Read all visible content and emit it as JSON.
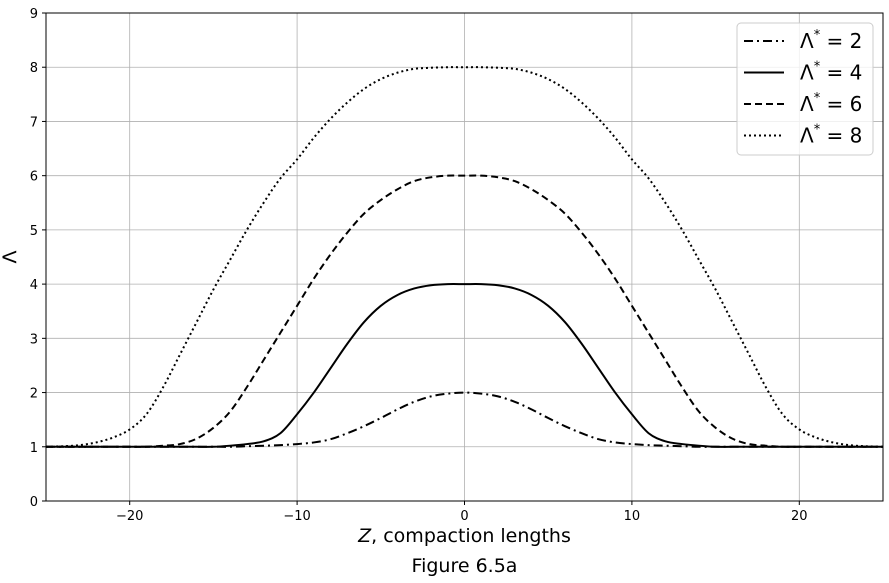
{
  "chart_data": {
    "type": "line",
    "title": "",
    "xlabel_var": "Z",
    "xlabel_rest": ", compaction lengths",
    "ylabel": "Λ",
    "caption": "Figure 6.5a",
    "xlim": [
      -25,
      25
    ],
    "ylim": [
      0,
      9
    ],
    "xticks": [
      -20,
      -10,
      0,
      10,
      20
    ],
    "xtick_labels": [
      "−20",
      "−10",
      "0",
      "10",
      "20"
    ],
    "yticks": [
      0,
      1,
      2,
      3,
      4,
      5,
      6,
      7,
      8,
      9
    ],
    "ytick_labels": [
      "0",
      "1",
      "2",
      "3",
      "4",
      "5",
      "6",
      "7",
      "8",
      "9"
    ],
    "grid": true,
    "legend_position": "top-right",
    "x": [
      -25,
      -24,
      -23,
      -22,
      -21,
      -20,
      -19,
      -18,
      -17,
      -16,
      -15,
      -14,
      -13,
      -12,
      -11,
      -10,
      -9,
      -8,
      -7,
      -6,
      -5,
      -4,
      -3,
      -2,
      -1,
      0,
      1,
      2,
      3,
      4,
      5,
      6,
      7,
      8,
      9,
      10,
      11,
      12,
      13,
      14,
      15,
      16,
      17,
      18,
      19,
      20,
      21,
      22,
      23,
      24,
      25
    ],
    "series": [
      {
        "name_base": "Λ",
        "name_sup": "*",
        "name_value": " = 2",
        "style": "dashdot",
        "values": [
          1,
          1,
          1,
          1,
          1,
          1,
          1,
          1,
          1,
          1,
          1,
          1,
          1.01,
          1.02,
          1.03,
          1.05,
          1.08,
          1.14,
          1.25,
          1.38,
          1.53,
          1.69,
          1.83,
          1.93,
          1.98,
          2.0,
          1.98,
          1.93,
          1.83,
          1.69,
          1.53,
          1.38,
          1.25,
          1.14,
          1.08,
          1.05,
          1.03,
          1.02,
          1.01,
          1,
          1,
          1,
          1,
          1,
          1,
          1,
          1,
          1,
          1,
          1,
          1
        ]
      },
      {
        "name_base": "Λ",
        "name_sup": "*",
        "name_value": " = 4",
        "style": "solid",
        "values": [
          1,
          1,
          1,
          1,
          1,
          1,
          1,
          1,
          1,
          1,
          1,
          1.02,
          1.05,
          1.1,
          1.25,
          1.6,
          2.0,
          2.45,
          2.9,
          3.3,
          3.6,
          3.8,
          3.92,
          3.98,
          4.0,
          4.0,
          4.0,
          3.98,
          3.92,
          3.8,
          3.6,
          3.3,
          2.9,
          2.45,
          2.0,
          1.6,
          1.25,
          1.1,
          1.05,
          1.02,
          1,
          1,
          1,
          1,
          1,
          1,
          1,
          1,
          1,
          1,
          1
        ]
      },
      {
        "name_base": "Λ",
        "name_sup": "*",
        "name_value": " = 6",
        "style": "dashed",
        "values": [
          1,
          1,
          1,
          1,
          1,
          1,
          1,
          1.02,
          1.05,
          1.15,
          1.35,
          1.65,
          2.1,
          2.6,
          3.1,
          3.6,
          4.1,
          4.55,
          4.95,
          5.3,
          5.55,
          5.75,
          5.9,
          5.97,
          6.0,
          6.0,
          6.0,
          5.97,
          5.9,
          5.75,
          5.55,
          5.3,
          4.95,
          4.55,
          4.1,
          3.6,
          3.1,
          2.6,
          2.1,
          1.65,
          1.35,
          1.15,
          1.05,
          1.02,
          1,
          1,
          1,
          1,
          1,
          1,
          1
        ]
      },
      {
        "name_base": "Λ",
        "name_sup": "*",
        "name_value": " = 8",
        "style": "dotted",
        "values": [
          1,
          1.01,
          1.03,
          1.08,
          1.17,
          1.32,
          1.6,
          2.1,
          2.7,
          3.3,
          3.9,
          4.45,
          5.0,
          5.5,
          5.95,
          6.3,
          6.7,
          7.05,
          7.35,
          7.6,
          7.78,
          7.9,
          7.97,
          7.99,
          8.0,
          8.0,
          8.0,
          7.99,
          7.97,
          7.9,
          7.78,
          7.6,
          7.35,
          7.05,
          6.7,
          6.3,
          5.95,
          5.5,
          5.0,
          4.45,
          3.9,
          3.3,
          2.7,
          2.1,
          1.6,
          1.32,
          1.17,
          1.08,
          1.03,
          1.01,
          1
        ]
      }
    ]
  }
}
